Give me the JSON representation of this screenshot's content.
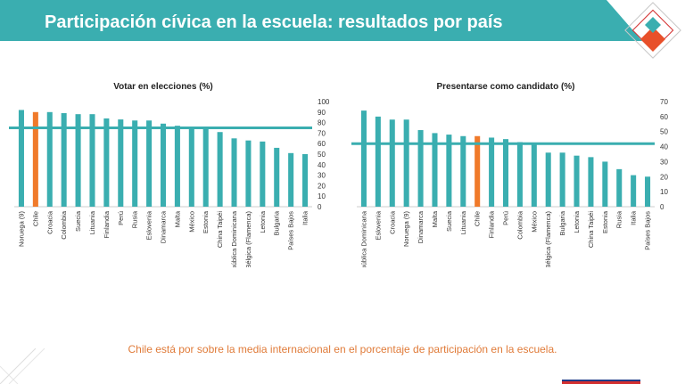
{
  "header": {
    "title": "Participación cívica en la escuela: resultados por país"
  },
  "colors": {
    "banner": "#3aaeb0",
    "bar": "#3aaeb0",
    "highlight": "#f07a2a",
    "mean_line": "#3aaeb0",
    "footer_text": "#e07b39"
  },
  "footer": {
    "note": "Chile está por sobre la media internacional en el porcentaje de participación en la escuela."
  },
  "chart_data": [
    {
      "type": "bar",
      "title": "Votar en elecciones (%)",
      "categories": [
        "Noruega (9)",
        "Chile",
        "Croacia",
        "Colombia",
        "Suecia",
        "Lituania",
        "Finlandia",
        "Perú",
        "Rusia",
        "Eslovenia",
        "Dinamarca",
        "Malta",
        "México",
        "Estonia",
        "China Taipéi",
        "República Dominicana",
        "Bélgica (Flamenca)",
        "Letonia",
        "Bulgaria",
        "Países Bajos",
        "Italia"
      ],
      "values": [
        92,
        90,
        90,
        89,
        88,
        88,
        84,
        83,
        82,
        82,
        79,
        77,
        75,
        74,
        71,
        65,
        63,
        62,
        56,
        51,
        50
      ],
      "highlight": "Chile",
      "mean_line": 75,
      "ylim": [
        0,
        100
      ],
      "yticks": [
        0,
        10,
        20,
        30,
        40,
        50,
        60,
        70,
        80,
        90,
        100
      ],
      "y_axis_side": "right",
      "grid": false
    },
    {
      "type": "bar",
      "title": "Presentarse como candidato (%)",
      "categories": [
        "República Dominicana",
        "Eslovenia",
        "Croacia",
        "Noruega (9)",
        "Dinamarca",
        "Malta",
        "Suecia",
        "Lituania",
        "Chile",
        "Finlandia",
        "Perú",
        "Colombia",
        "México",
        "Bélgica (Flamenca)",
        "Bulgaria",
        "Letonia",
        "China Taipéi",
        "Estonia",
        "Rusia",
        "Italia",
        "Países Bajos"
      ],
      "values": [
        64,
        60,
        58,
        58,
        51,
        49,
        48,
        47,
        47,
        46,
        45,
        43,
        42,
        36,
        36,
        34,
        33,
        30,
        25,
        21,
        20
      ],
      "highlight": "Chile",
      "mean_line": 42,
      "ylim": [
        0,
        70
      ],
      "yticks": [
        0,
        10,
        20,
        30,
        40,
        50,
        60,
        70
      ],
      "y_axis_side": "right",
      "grid": false
    }
  ]
}
